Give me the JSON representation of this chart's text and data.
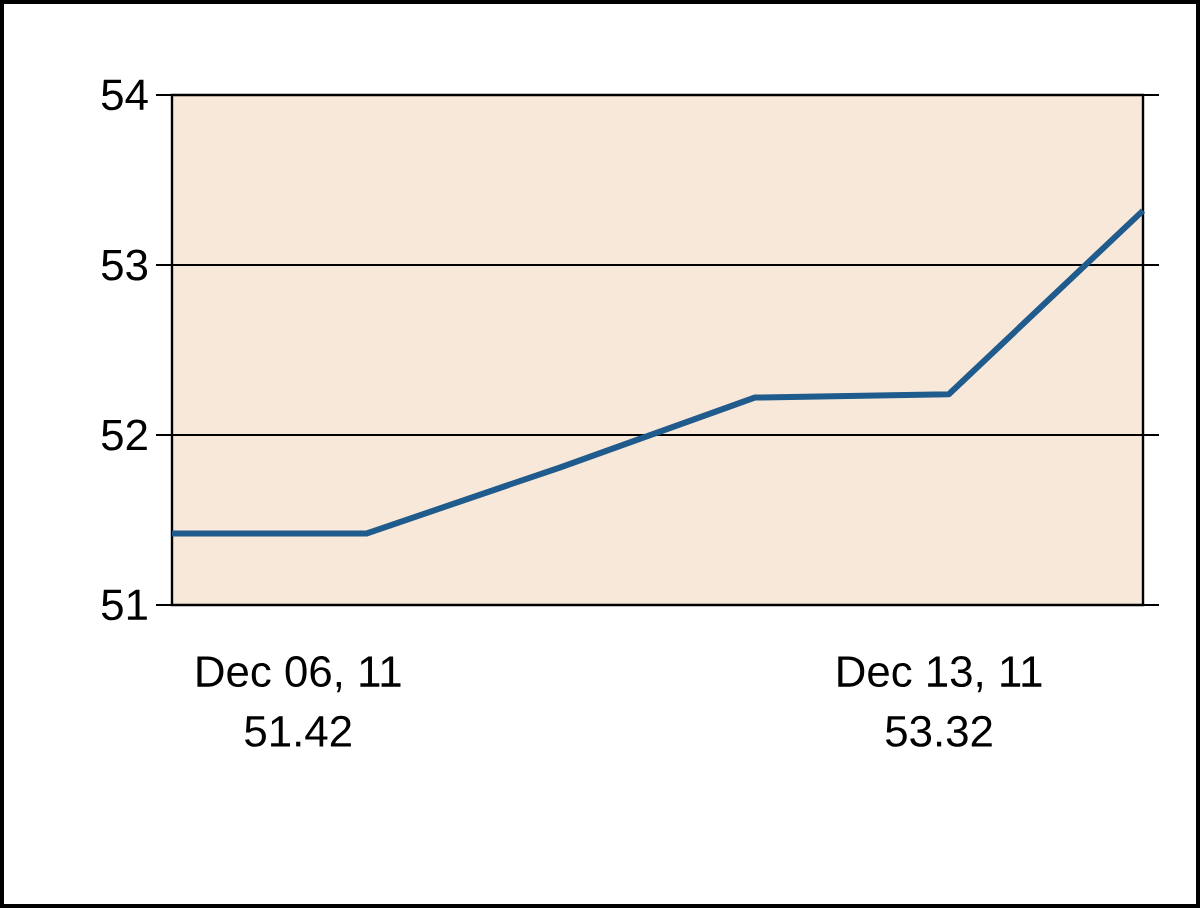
{
  "chart_data": {
    "type": "line",
    "categories": [
      null,
      null,
      null,
      null,
      null,
      null
    ],
    "values": [
      51.42,
      51.42,
      51.81,
      52.22,
      52.24,
      53.32
    ],
    "annotations": [
      "Dec 06, 11",
      "51.42",
      "Dec 13, 11",
      "53.32"
    ],
    "color": "#1f5b8c",
    "ylim": [
      51,
      54
    ],
    "yticks": [
      51,
      52,
      53,
      54
    ],
    "grid": "y",
    "marker": "none",
    "line_style": "solid"
  }
}
